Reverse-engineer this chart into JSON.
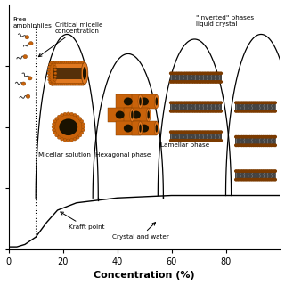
{
  "xlabel": "Concentration (%)",
  "xlim": [
    0,
    100
  ],
  "ylim": [
    0,
    100
  ],
  "xticks": [
    0,
    20,
    40,
    60,
    80
  ],
  "ytick_labels": [
    "",
    "",
    "",
    "",
    ""
  ],
  "orange": "#c8620a",
  "orange_light": "#e07820",
  "orange_dark": "#7a3a00",
  "black_dark": "#1a1200",
  "gray_tail": "#555555",
  "phase_labels": {
    "micellar": "Micellar solution",
    "hexagonal": "Hexagonal phase",
    "lamellar": "Lamellar phase",
    "krafft": "Krafft point",
    "crystal": "Crystal and water",
    "free": "Free\namphiphiles",
    "cmc": "Critical micelle\nconcentration",
    "inverted": "\"Inverted\" phases\nliquid crystal"
  }
}
